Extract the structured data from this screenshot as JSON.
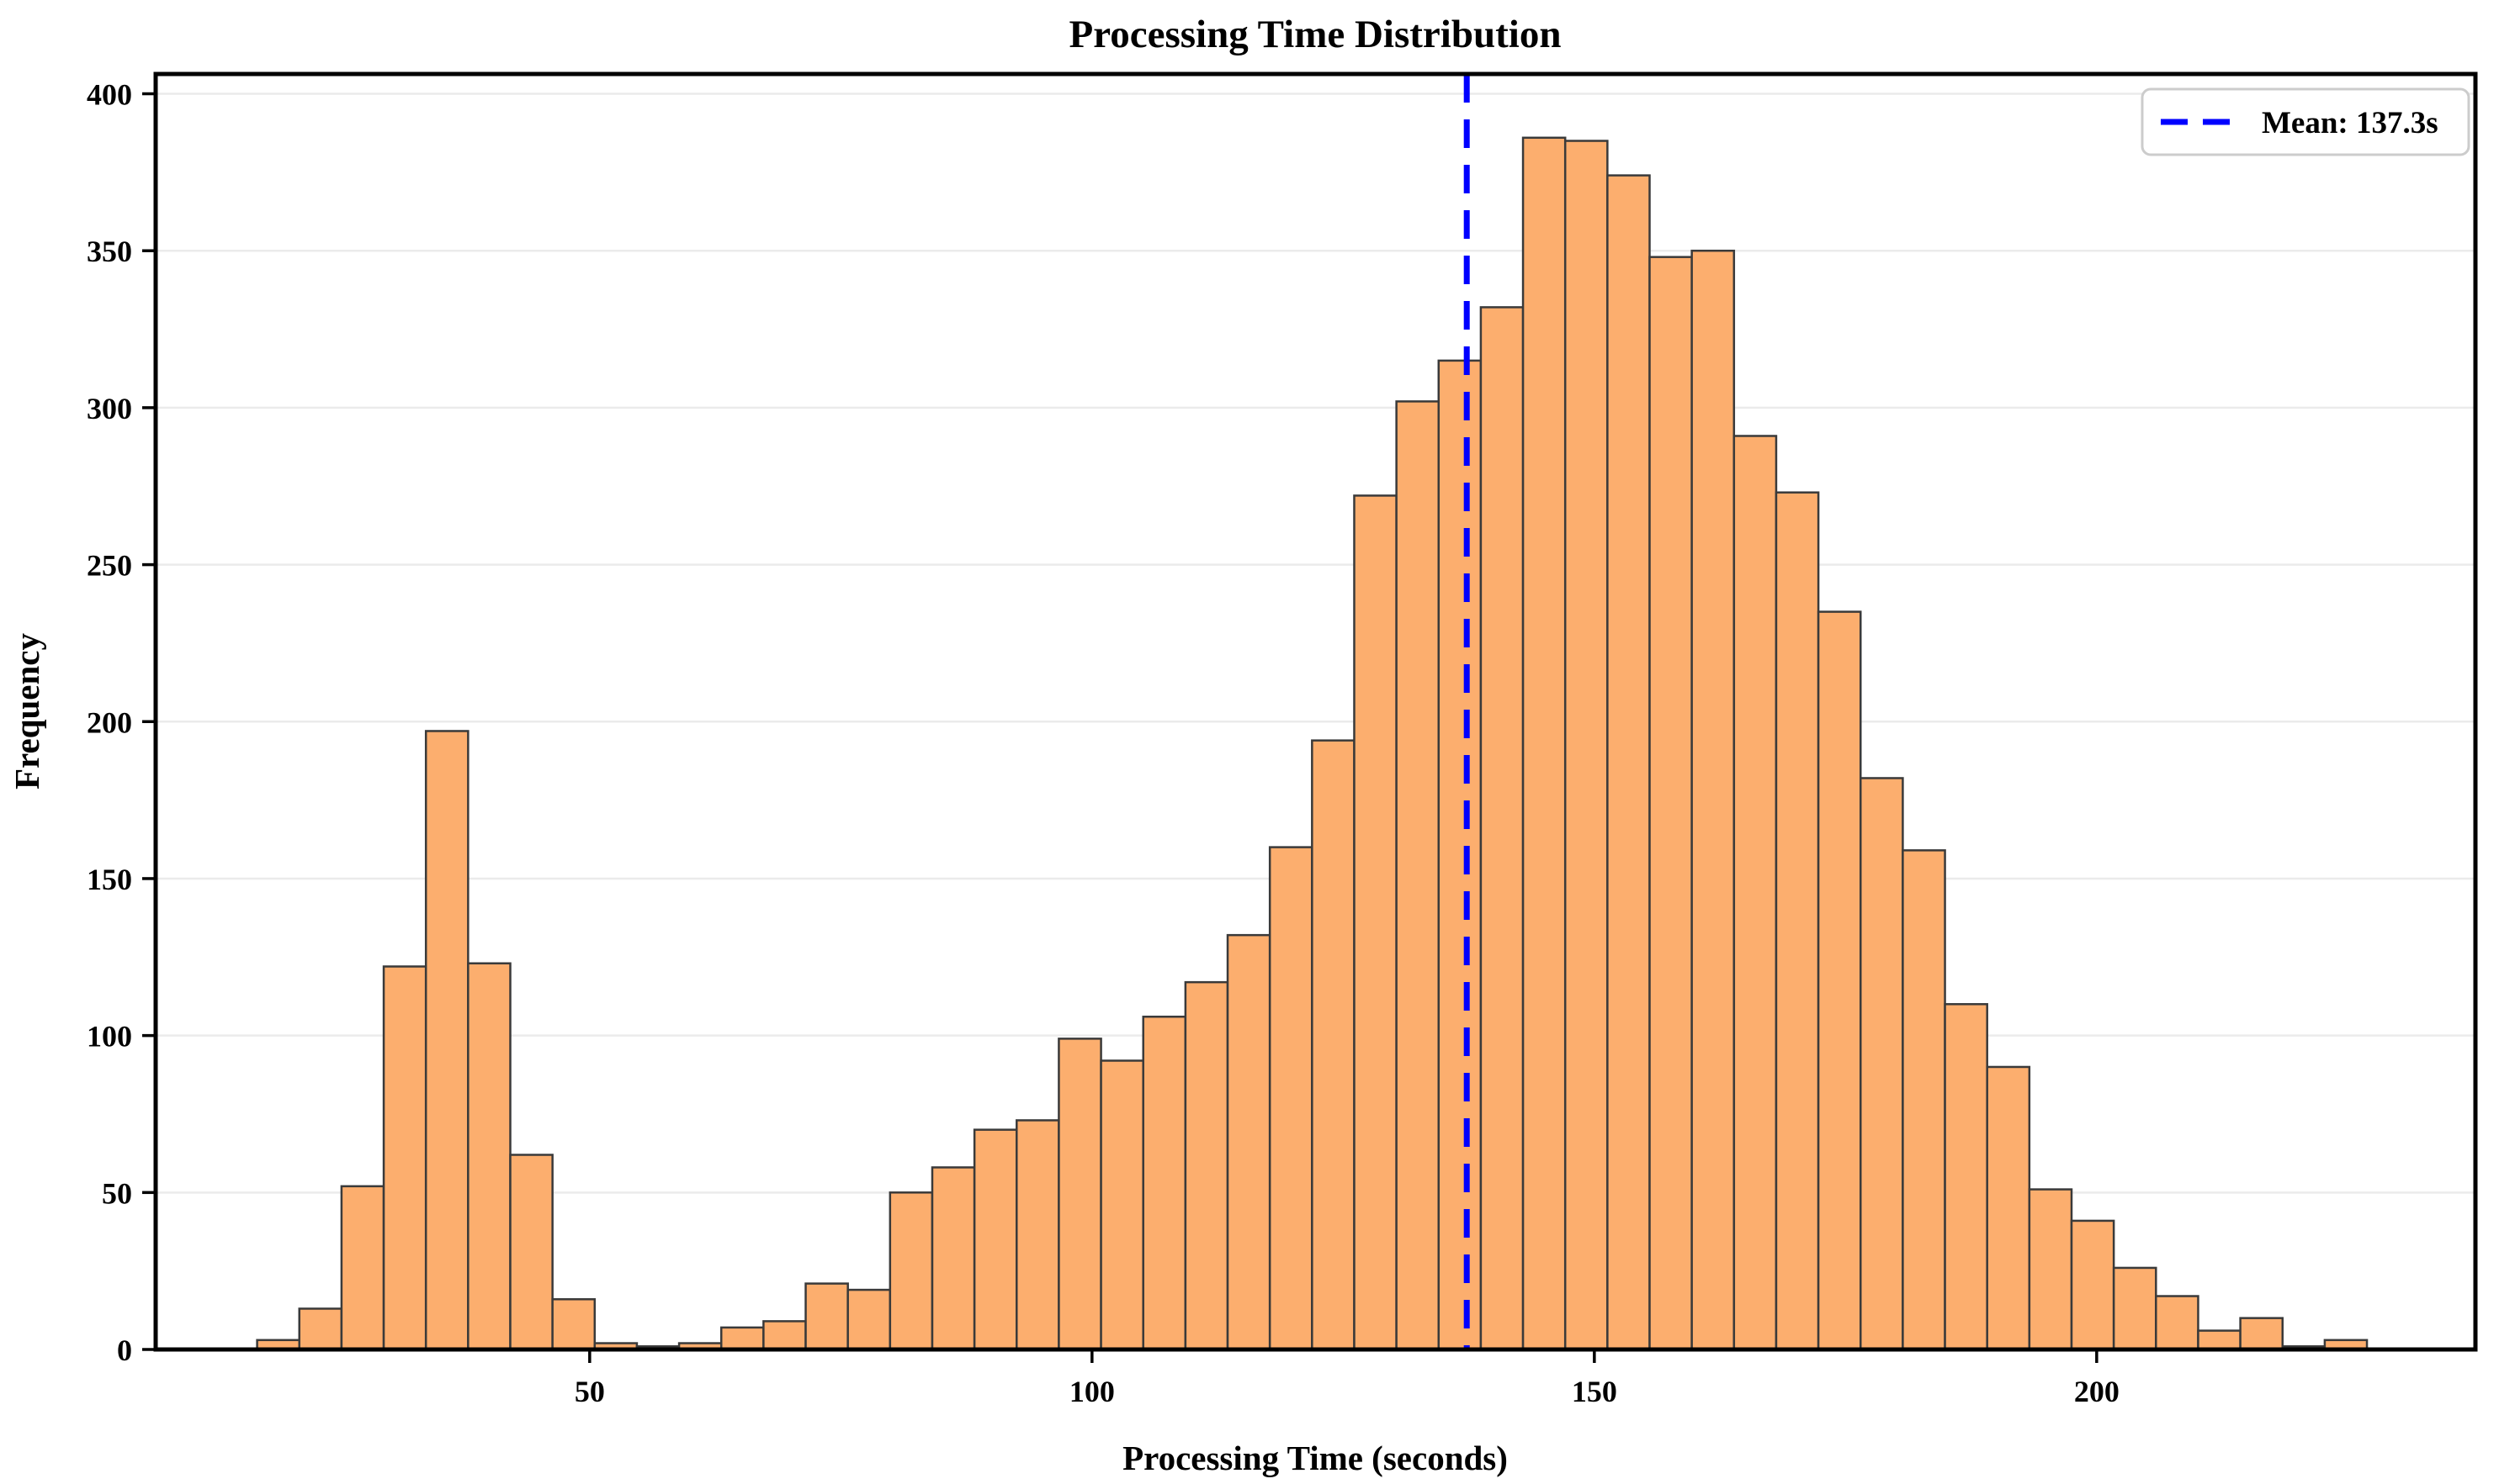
{
  "figure": {
    "background": "#ffffff"
  },
  "chart_data": {
    "type": "bar",
    "subtype": "histogram",
    "title": "Processing Time Distribution",
    "xlabel": "Processing Time (seconds)",
    "ylabel": "Frequency",
    "bin_start": 16.9,
    "bin_width": 4.2,
    "counts": [
      3,
      13,
      52,
      122,
      197,
      123,
      62,
      16,
      2,
      1,
      2,
      7,
      9,
      21,
      19,
      50,
      58,
      70,
      73,
      99,
      92,
      106,
      117,
      132,
      160,
      194,
      272,
      302,
      315,
      332,
      386,
      385,
      374,
      348,
      350,
      291,
      273,
      235,
      182,
      159,
      110,
      90,
      51,
      41,
      26,
      17,
      6,
      10,
      1,
      3
    ],
    "mean": 137.3,
    "xlim": [
      6.8,
      237.7
    ],
    "ylim": [
      0,
      406.3
    ],
    "xticks": [
      50,
      100,
      150,
      200
    ],
    "yticks": [
      0,
      50,
      100,
      150,
      200,
      250,
      300,
      350,
      400
    ],
    "grid": "horizontal-only",
    "legend": {
      "label": "Mean: 137.3s",
      "position": "upper-right"
    },
    "colors": {
      "bar_fill": "#FCAE6E",
      "bar_edge": "#3A3A3A",
      "mean_line": "#0000FF",
      "grid_line": "#EBEBEB",
      "spine": "#000000",
      "tick": "#000000",
      "text": "#000000",
      "legend_border": "#CCCCCC",
      "legend_bg": "#FFFFFF"
    }
  }
}
